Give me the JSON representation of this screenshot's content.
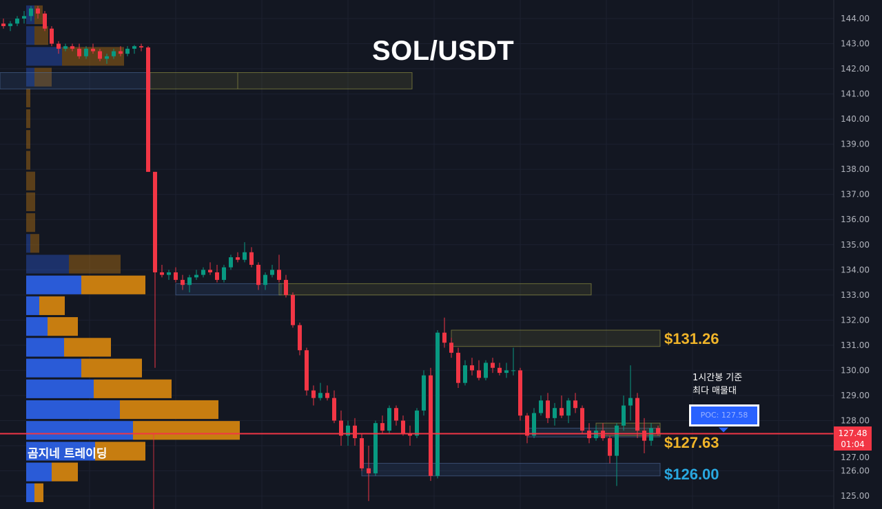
{
  "title": "SOL/USDT",
  "brand": "곰지네 트레이딩",
  "annotation": {
    "line1": "1시간봉 기준",
    "line2": "최다 매물대"
  },
  "poc_label": "POC: 127.58",
  "current_price": {
    "price": "127.48",
    "countdown": "01:04",
    "value": 127.48
  },
  "levels": [
    {
      "label": "$131.26",
      "color": "#f0b429"
    },
    {
      "label": "$127.63",
      "color": "#f0b429"
    },
    {
      "label": "$126.00",
      "color": "#29a8e0"
    }
  ],
  "colors": {
    "up": "#089981",
    "down": "#f23645",
    "buy_volume": "#2a5bd7",
    "sell_volume": "#c77d10",
    "background": "#131722"
  },
  "chart_data": {
    "type": "candlestick",
    "title": "SOL/USDT",
    "ylim": [
      124.5,
      144.7
    ],
    "yticks": [
      "144.00",
      "143.00",
      "142.00",
      "141.00",
      "140.00",
      "139.00",
      "138.00",
      "137.00",
      "136.00",
      "135.00",
      "134.00",
      "133.00",
      "132.00",
      "131.00",
      "130.00",
      "129.00",
      "128.00",
      "127.00",
      "126.00",
      "125.00"
    ],
    "candles": [
      [
        143.8,
        144.0,
        143.6,
        143.7
      ],
      [
        143.7,
        143.9,
        143.5,
        143.8
      ],
      [
        143.8,
        144.1,
        143.7,
        144.0
      ],
      [
        144.0,
        144.3,
        143.8,
        144.1
      ],
      [
        144.1,
        144.5,
        143.9,
        144.4
      ],
      [
        144.4,
        144.5,
        144.0,
        144.2
      ],
      [
        144.2,
        144.3,
        143.5,
        143.6
      ],
      [
        143.6,
        143.7,
        142.9,
        143.0
      ],
      [
        143.0,
        143.1,
        142.6,
        142.8
      ],
      [
        142.8,
        143.0,
        142.7,
        142.9
      ],
      [
        142.9,
        143.0,
        142.7,
        142.8
      ],
      [
        142.8,
        143.0,
        142.4,
        142.5
      ],
      [
        142.5,
        142.9,
        142.4,
        142.8
      ],
      [
        142.8,
        143.0,
        142.6,
        142.7
      ],
      [
        142.7,
        142.8,
        142.3,
        142.4
      ],
      [
        142.4,
        142.6,
        142.2,
        142.5
      ],
      [
        142.5,
        142.8,
        142.4,
        142.7
      ],
      [
        142.7,
        142.9,
        142.5,
        142.6
      ],
      [
        142.6,
        142.9,
        142.5,
        142.8
      ],
      [
        142.8,
        142.95,
        142.6,
        142.9
      ],
      [
        142.9,
        143.0,
        142.7,
        142.85
      ],
      [
        142.85,
        142.9,
        137.9,
        137.9
      ],
      [
        137.9,
        137.9,
        130.1,
        133.9
      ],
      [
        133.9,
        134.2,
        133.7,
        133.8
      ],
      [
        133.8,
        134.0,
        133.6,
        133.9
      ],
      [
        133.9,
        134.1,
        133.5,
        133.6
      ],
      [
        133.6,
        133.8,
        133.2,
        133.4
      ],
      [
        133.4,
        133.8,
        133.1,
        133.7
      ],
      [
        133.7,
        134.0,
        133.6,
        133.8
      ],
      [
        133.8,
        134.1,
        133.7,
        134.0
      ],
      [
        134.0,
        134.3,
        133.8,
        133.9
      ],
      [
        133.9,
        134.2,
        133.5,
        133.6
      ],
      [
        133.6,
        134.2,
        133.5,
        134.1
      ],
      [
        134.1,
        134.6,
        134.0,
        134.5
      ],
      [
        134.5,
        134.7,
        134.3,
        134.4
      ],
      [
        134.4,
        135.1,
        134.3,
        134.7
      ],
      [
        134.7,
        134.9,
        134.1,
        134.2
      ],
      [
        134.2,
        134.3,
        133.2,
        133.4
      ],
      [
        133.4,
        133.9,
        133.2,
        133.8
      ],
      [
        133.8,
        134.2,
        133.7,
        134.0
      ],
      [
        134.0,
        134.6,
        133.5,
        133.6
      ],
      [
        133.6,
        133.8,
        132.9,
        133.0
      ],
      [
        133.0,
        133.1,
        131.7,
        131.8
      ],
      [
        131.8,
        131.9,
        130.6,
        130.8
      ],
      [
        130.8,
        130.9,
        129.0,
        129.2
      ],
      [
        129.2,
        129.4,
        128.6,
        128.9
      ],
      [
        128.9,
        129.5,
        128.8,
        129.1
      ],
      [
        129.1,
        129.4,
        128.8,
        128.9
      ],
      [
        128.9,
        129.2,
        127.9,
        128.0
      ],
      [
        128.0,
        128.4,
        127.0,
        127.4
      ],
      [
        127.4,
        128.0,
        127.0,
        127.8
      ],
      [
        127.8,
        128.1,
        127.0,
        127.3
      ],
      [
        127.3,
        127.5,
        126.0,
        126.1
      ],
      [
        126.1,
        127.0,
        124.8,
        125.9
      ],
      [
        125.9,
        128.0,
        125.8,
        127.9
      ],
      [
        127.9,
        128.2,
        127.5,
        127.6
      ],
      [
        127.6,
        128.6,
        127.5,
        128.5
      ],
      [
        128.5,
        128.6,
        127.8,
        128.0
      ],
      [
        128.0,
        128.2,
        127.4,
        127.5
      ],
      [
        127.5,
        127.8,
        127.0,
        127.4
      ],
      [
        127.4,
        128.5,
        127.3,
        128.4
      ],
      [
        128.4,
        130.0,
        128.2,
        129.8
      ],
      [
        129.8,
        130.1,
        125.6,
        125.8
      ],
      [
        125.8,
        131.6,
        125.7,
        131.5
      ],
      [
        131.5,
        132.1,
        130.9,
        131.1
      ],
      [
        131.1,
        131.3,
        130.5,
        130.7
      ],
      [
        130.7,
        130.9,
        129.3,
        129.5
      ],
      [
        129.5,
        130.4,
        129.4,
        130.2
      ],
      [
        130.2,
        130.5,
        129.8,
        130.0
      ],
      [
        130.0,
        130.4,
        129.6,
        129.7
      ],
      [
        129.7,
        130.4,
        129.6,
        130.3
      ],
      [
        130.3,
        130.5,
        129.9,
        130.1
      ],
      [
        130.1,
        130.3,
        129.8,
        129.9
      ],
      [
        129.9,
        130.3,
        129.7,
        130.0
      ],
      [
        130.0,
        130.9,
        129.8,
        130.0
      ],
      [
        130.0,
        130.1,
        128.0,
        128.2
      ],
      [
        128.2,
        128.3,
        127.1,
        127.4
      ],
      [
        127.4,
        128.5,
        127.3,
        128.3
      ],
      [
        128.3,
        129.0,
        128.2,
        128.8
      ],
      [
        128.8,
        129.1,
        127.9,
        128.1
      ],
      [
        128.1,
        128.7,
        127.8,
        128.5
      ],
      [
        128.5,
        129.0,
        128.1,
        128.2
      ],
      [
        128.2,
        128.9,
        127.9,
        128.8
      ],
      [
        128.8,
        129.1,
        128.3,
        128.5
      ],
      [
        128.5,
        128.6,
        127.5,
        127.6
      ],
      [
        127.6,
        127.9,
        127.1,
        127.3
      ],
      [
        127.3,
        127.8,
        127.2,
        127.6
      ],
      [
        127.6,
        127.9,
        127.2,
        127.3
      ],
      [
        127.3,
        127.4,
        126.3,
        126.6
      ],
      [
        126.6,
        127.9,
        125.4,
        127.8
      ],
      [
        127.8,
        129.0,
        127.6,
        128.6
      ],
      [
        128.6,
        130.2,
        128.0,
        128.9
      ],
      [
        128.9,
        129.1,
        127.3,
        127.6
      ],
      [
        127.6,
        128.1,
        126.7,
        127.2
      ],
      [
        127.2,
        127.9,
        127.0,
        127.7
      ],
      [
        127.7,
        127.8,
        127.4,
        127.48
      ]
    ],
    "volume_profile": {
      "top_price": 144.55,
      "row_size": 0.827,
      "value_area_rows": [
        13,
        23
      ],
      "rows": [
        [
          12,
          12
        ],
        [
          12,
          20
        ],
        [
          52,
          90
        ],
        [
          12,
          25
        ],
        [
          0,
          6
        ],
        [
          0,
          6
        ],
        [
          0,
          6
        ],
        [
          0,
          6
        ],
        [
          0,
          13
        ],
        [
          0,
          13
        ],
        [
          0,
          13
        ],
        [
          6,
          13
        ],
        [
          62,
          75
        ],
        [
          80,
          93
        ],
        [
          19,
          37
        ],
        [
          31,
          44
        ],
        [
          55,
          68
        ],
        [
          80,
          88
        ],
        [
          98,
          113
        ],
        [
          136,
          143
        ],
        [
          155,
          155
        ],
        [
          100,
          73
        ],
        [
          37,
          38
        ],
        [
          12,
          13
        ]
      ]
    },
    "zones": [
      {
        "type": "demand",
        "from": 0,
        "to": 21,
        "low": 141.2,
        "high": 141.85
      },
      {
        "type": "supply",
        "from": 21,
        "to": 59,
        "low": 141.2,
        "high": 141.85,
        "split": 34
      },
      {
        "type": "demand",
        "from": 25,
        "to": 40,
        "low": 133.0,
        "high": 133.45
      },
      {
        "type": "supply",
        "from": 40,
        "to": 85,
        "low": 133.0,
        "high": 133.45
      },
      {
        "type": "supply",
        "from": 65,
        "to": 95,
        "low": 130.95,
        "high": 131.6
      },
      {
        "type": "demand",
        "from": 76,
        "to": 95,
        "low": 127.35,
        "high": 127.7
      },
      {
        "type": "supply",
        "from": 86,
        "to": 95,
        "low": 127.4,
        "high": 127.9
      },
      {
        "type": "demand",
        "from": 52,
        "to": 95,
        "low": 125.8,
        "high": 126.3
      }
    ]
  }
}
